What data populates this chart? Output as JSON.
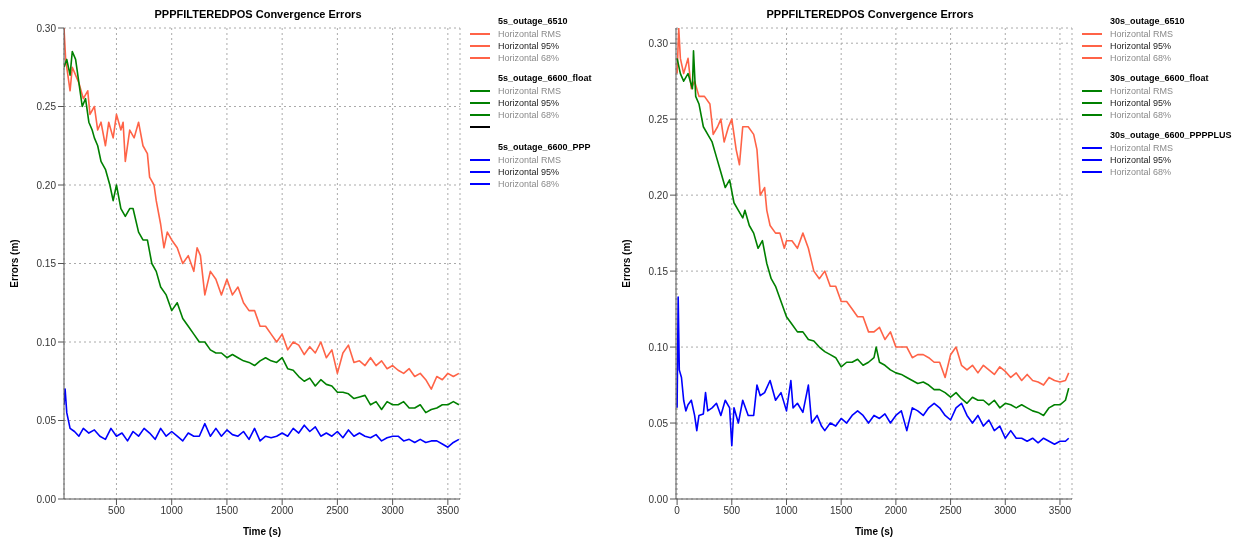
{
  "chart_data": [
    {
      "type": "line",
      "title": "PPPFILTEREDPOS Convergence Errors",
      "xlabel": "Time (s)",
      "ylabel": "Errors (m)",
      "xlim": [
        25,
        3610
      ],
      "xticks": [
        500,
        1000,
        1500,
        2000,
        2500,
        3000,
        3500
      ],
      "ylim": [
        0,
        0.3
      ],
      "yticks": [
        {
          "value": 0,
          "label": "0.00"
        },
        {
          "value": 0.05,
          "label": "0.05"
        },
        {
          "value": 0.1,
          "label": "0.10"
        },
        {
          "value": 0.15,
          "label": "0.15"
        },
        {
          "value": 0.2,
          "label": "0.20"
        },
        {
          "value": 0.25,
          "label": "0.25"
        },
        {
          "value": 0.3,
          "label": "0.30"
        }
      ],
      "grid": true,
      "legend": "right",
      "marker": "none",
      "line_style": "solid",
      "series": [
        {
          "name": "5s_outage_6510"
        },
        {
          "name": "Horizontal RMS",
          "color": "#ff6347"
        },
        {
          "name": "Horizontal 95%",
          "color": "#ff6347",
          "x": [
            25,
            40,
            60,
            80,
            100,
            130,
            160,
            200,
            240,
            260,
            300,
            330,
            360,
            400,
            430,
            470,
            500,
            540,
            560,
            580,
            620,
            660,
            700,
            740,
            780,
            800,
            840,
            860,
            900,
            930,
            960,
            1000,
            1050,
            1100,
            1150,
            1200,
            1230,
            1260,
            1300,
            1350,
            1400,
            1450,
            1500,
            1550,
            1600,
            1650,
            1700,
            1750,
            1800,
            1850,
            1900,
            1950,
            2000,
            2050,
            2100,
            2150,
            2200,
            2250,
            2300,
            2350,
            2400,
            2450,
            2500,
            2550,
            2600,
            2650,
            2700,
            2750,
            2800,
            2850,
            2900,
            2950,
            3000,
            3050,
            3100,
            3150,
            3200,
            3250,
            3300,
            3350,
            3400,
            3450,
            3500,
            3550,
            3600
          ],
          "values": [
            0.3,
            0.28,
            0.27,
            0.26,
            0.275,
            0.27,
            0.265,
            0.255,
            0.26,
            0.245,
            0.25,
            0.235,
            0.24,
            0.225,
            0.24,
            0.23,
            0.245,
            0.235,
            0.24,
            0.215,
            0.235,
            0.23,
            0.24,
            0.225,
            0.22,
            0.205,
            0.2,
            0.19,
            0.175,
            0.16,
            0.17,
            0.165,
            0.16,
            0.15,
            0.155,
            0.145,
            0.16,
            0.155,
            0.13,
            0.145,
            0.14,
            0.13,
            0.14,
            0.13,
            0.135,
            0.125,
            0.12,
            0.12,
            0.11,
            0.11,
            0.105,
            0.1,
            0.105,
            0.095,
            0.1,
            0.098,
            0.092,
            0.097,
            0.093,
            0.1,
            0.09,
            0.095,
            0.08,
            0.093,
            0.098,
            0.087,
            0.088,
            0.085,
            0.09,
            0.085,
            0.088,
            0.083,
            0.085,
            0.082,
            0.08,
            0.083,
            0.078,
            0.08,
            0.076,
            0.07,
            0.078,
            0.076,
            0.08,
            0.078,
            0.08
          ]
        },
        {
          "name": "Horizontal 68%",
          "color": "#ff6347"
        },
        {
          "name": "5s_outage_6600_float"
        },
        {
          "name": "Horizontal RMS",
          "color": "#008000"
        },
        {
          "name": "Horizontal 95%",
          "color": "#008000",
          "x": [
            25,
            50,
            80,
            100,
            130,
            160,
            190,
            220,
            250,
            280,
            300,
            330,
            360,
            400,
            440,
            470,
            500,
            540,
            580,
            620,
            650,
            700,
            740,
            780,
            820,
            860,
            900,
            950,
            1000,
            1050,
            1100,
            1150,
            1200,
            1250,
            1300,
            1350,
            1400,
            1450,
            1500,
            1550,
            1600,
            1650,
            1700,
            1750,
            1800,
            1850,
            1900,
            1950,
            2000,
            2050,
            2100,
            2150,
            2200,
            2250,
            2300,
            2350,
            2400,
            2450,
            2500,
            2550,
            2600,
            2650,
            2700,
            2750,
            2800,
            2850,
            2900,
            2950,
            3000,
            3050,
            3100,
            3150,
            3200,
            3250,
            3300,
            3350,
            3400,
            3450,
            3500,
            3550,
            3600
          ],
          "values": [
            0.275,
            0.28,
            0.27,
            0.285,
            0.28,
            0.265,
            0.25,
            0.255,
            0.24,
            0.235,
            0.23,
            0.225,
            0.215,
            0.21,
            0.2,
            0.19,
            0.2,
            0.185,
            0.18,
            0.185,
            0.185,
            0.17,
            0.165,
            0.165,
            0.15,
            0.145,
            0.135,
            0.13,
            0.12,
            0.125,
            0.115,
            0.11,
            0.105,
            0.1,
            0.1,
            0.095,
            0.093,
            0.093,
            0.09,
            0.092,
            0.09,
            0.088,
            0.087,
            0.085,
            0.088,
            0.09,
            0.088,
            0.087,
            0.09,
            0.083,
            0.082,
            0.078,
            0.075,
            0.077,
            0.072,
            0.076,
            0.073,
            0.072,
            0.068,
            0.068,
            0.067,
            0.064,
            0.065,
            0.066,
            0.06,
            0.062,
            0.057,
            0.062,
            0.06,
            0.06,
            0.062,
            0.058,
            0.058,
            0.06,
            0.055,
            0.057,
            0.058,
            0.06,
            0.06,
            0.062,
            0.06
          ]
        },
        {
          "name": "Horizontal 68%",
          "color": "#008000"
        },
        {
          "color": "#000000"
        },
        {
          "name": "5s_outage_6600_PPP"
        },
        {
          "name": "Horizontal RMS",
          "color": "#0000ff"
        },
        {
          "name": "Horizontal 95%",
          "color": "#0000ff",
          "x": [
            25,
            35,
            50,
            80,
            120,
            160,
            200,
            250,
            300,
            350,
            400,
            450,
            500,
            550,
            600,
            650,
            700,
            750,
            800,
            850,
            900,
            950,
            1000,
            1050,
            1100,
            1150,
            1200,
            1250,
            1300,
            1350,
            1400,
            1450,
            1500,
            1550,
            1600,
            1650,
            1700,
            1750,
            1800,
            1850,
            1900,
            1950,
            2000,
            2050,
            2100,
            2150,
            2200,
            2250,
            2300,
            2350,
            2400,
            2450,
            2500,
            2550,
            2600,
            2650,
            2700,
            2750,
            2800,
            2850,
            2900,
            2950,
            3000,
            3050,
            3100,
            3150,
            3200,
            3250,
            3300,
            3350,
            3400,
            3450,
            3500,
            3550,
            3600
          ],
          "values": [
            0.06,
            0.07,
            0.055,
            0.045,
            0.043,
            0.04,
            0.045,
            0.042,
            0.044,
            0.04,
            0.038,
            0.045,
            0.04,
            0.042,
            0.037,
            0.043,
            0.04,
            0.045,
            0.042,
            0.038,
            0.045,
            0.04,
            0.043,
            0.04,
            0.037,
            0.042,
            0.04,
            0.04,
            0.048,
            0.04,
            0.045,
            0.04,
            0.044,
            0.041,
            0.04,
            0.043,
            0.038,
            0.045,
            0.037,
            0.04,
            0.039,
            0.04,
            0.042,
            0.04,
            0.045,
            0.042,
            0.047,
            0.043,
            0.046,
            0.04,
            0.042,
            0.04,
            0.043,
            0.039,
            0.044,
            0.04,
            0.042,
            0.04,
            0.039,
            0.041,
            0.037,
            0.039,
            0.04,
            0.04,
            0.037,
            0.038,
            0.036,
            0.038,
            0.036,
            0.037,
            0.037,
            0.035,
            0.033,
            0.036,
            0.038
          ]
        },
        {
          "name": "Horizontal 68%",
          "color": "#0000ff"
        }
      ]
    },
    {
      "type": "line",
      "title": "PPPFILTEREDPOS Convergence Errors",
      "xlabel": "Time (s)",
      "ylabel": "Errors (m)",
      "xlim": [
        -10,
        3610
      ],
      "xticks": [
        0,
        500,
        1000,
        1500,
        2000,
        2500,
        3000,
        3500
      ],
      "ylim": [
        0,
        0.31
      ],
      "yticks": [
        {
          "value": 0,
          "label": "0.00"
        },
        {
          "value": 0.05,
          "label": "0.05"
        },
        {
          "value": 0.1,
          "label": "0.10"
        },
        {
          "value": 0.15,
          "label": "0.15"
        },
        {
          "value": 0.2,
          "label": "0.20"
        },
        {
          "value": 0.25,
          "label": "0.25"
        },
        {
          "value": 0.3,
          "label": "0.30"
        }
      ],
      "grid": true,
      "legend": "right",
      "marker": "none",
      "line_style": "solid",
      "series": [
        {
          "name": "30s_outage_6510"
        },
        {
          "name": "Horizontal RMS",
          "color": "#ff6347"
        },
        {
          "name": "Horizontal 95%",
          "color": "#ff6347",
          "x": [
            0,
            15,
            30,
            60,
            100,
            130,
            160,
            200,
            250,
            300,
            330,
            370,
            400,
            430,
            470,
            500,
            540,
            570,
            600,
            650,
            700,
            730,
            760,
            800,
            820,
            850,
            900,
            940,
            980,
            1000,
            1050,
            1100,
            1150,
            1200,
            1250,
            1300,
            1350,
            1400,
            1450,
            1500,
            1550,
            1600,
            1650,
            1700,
            1750,
            1800,
            1850,
            1900,
            1950,
            2000,
            2050,
            2100,
            2150,
            2200,
            2250,
            2300,
            2350,
            2400,
            2450,
            2500,
            2550,
            2600,
            2650,
            2700,
            2750,
            2800,
            2850,
            2900,
            2950,
            3000,
            3050,
            3100,
            3150,
            3200,
            3250,
            3300,
            3350,
            3400,
            3450,
            3500,
            3550,
            3580
          ],
          "values": [
            0.28,
            0.31,
            0.29,
            0.28,
            0.29,
            0.27,
            0.275,
            0.265,
            0.265,
            0.26,
            0.24,
            0.245,
            0.25,
            0.235,
            0.245,
            0.25,
            0.23,
            0.22,
            0.245,
            0.245,
            0.24,
            0.23,
            0.2,
            0.205,
            0.19,
            0.18,
            0.175,
            0.175,
            0.165,
            0.17,
            0.17,
            0.165,
            0.175,
            0.165,
            0.15,
            0.145,
            0.15,
            0.14,
            0.14,
            0.13,
            0.13,
            0.125,
            0.12,
            0.12,
            0.11,
            0.11,
            0.113,
            0.105,
            0.11,
            0.1,
            0.1,
            0.1,
            0.093,
            0.095,
            0.095,
            0.093,
            0.09,
            0.09,
            0.08,
            0.095,
            0.1,
            0.088,
            0.085,
            0.088,
            0.083,
            0.088,
            0.085,
            0.082,
            0.087,
            0.084,
            0.08,
            0.083,
            0.078,
            0.082,
            0.078,
            0.077,
            0.075,
            0.08,
            0.078,
            0.077,
            0.078,
            0.083
          ]
        },
        {
          "name": "Horizontal 68%",
          "color": "#ff6347"
        },
        {
          "name": "30s_outage_6600_float"
        },
        {
          "name": "Horizontal RMS",
          "color": "#008000"
        },
        {
          "name": "Horizontal 95%",
          "color": "#008000",
          "x": [
            0,
            30,
            60,
            100,
            140,
            150,
            170,
            200,
            240,
            280,
            320,
            360,
            400,
            440,
            480,
            520,
            560,
            600,
            620,
            660,
            700,
            740,
            780,
            820,
            860,
            900,
            950,
            1000,
            1050,
            1100,
            1150,
            1200,
            1250,
            1300,
            1350,
            1400,
            1450,
            1500,
            1550,
            1600,
            1650,
            1700,
            1750,
            1800,
            1820,
            1850,
            1900,
            1950,
            2000,
            2050,
            2100,
            2150,
            2200,
            2250,
            2300,
            2350,
            2400,
            2450,
            2500,
            2550,
            2600,
            2650,
            2700,
            2750,
            2800,
            2850,
            2900,
            2950,
            3000,
            3050,
            3100,
            3150,
            3200,
            3250,
            3300,
            3350,
            3400,
            3450,
            3500,
            3550,
            3580
          ],
          "values": [
            0.29,
            0.28,
            0.275,
            0.28,
            0.27,
            0.295,
            0.265,
            0.26,
            0.245,
            0.24,
            0.235,
            0.225,
            0.215,
            0.205,
            0.21,
            0.195,
            0.19,
            0.185,
            0.19,
            0.18,
            0.175,
            0.165,
            0.17,
            0.155,
            0.145,
            0.14,
            0.13,
            0.12,
            0.115,
            0.11,
            0.11,
            0.105,
            0.104,
            0.1,
            0.097,
            0.095,
            0.093,
            0.087,
            0.09,
            0.09,
            0.092,
            0.088,
            0.09,
            0.093,
            0.1,
            0.09,
            0.088,
            0.085,
            0.083,
            0.082,
            0.08,
            0.078,
            0.076,
            0.077,
            0.075,
            0.072,
            0.072,
            0.07,
            0.067,
            0.07,
            0.066,
            0.063,
            0.067,
            0.065,
            0.065,
            0.062,
            0.065,
            0.06,
            0.063,
            0.062,
            0.06,
            0.062,
            0.06,
            0.058,
            0.057,
            0.055,
            0.06,
            0.062,
            0.062,
            0.065,
            0.073
          ]
        },
        {
          "name": "Horizontal 68%",
          "color": "#008000"
        },
        {
          "name": "30s_outage_6600_PPPPLUS"
        },
        {
          "name": "Horizontal RMS",
          "color": "#0000ff"
        },
        {
          "name": "Horizontal 95%",
          "color": "#0000ff",
          "x": [
            0,
            10,
            20,
            40,
            60,
            80,
            100,
            130,
            160,
            180,
            200,
            240,
            260,
            280,
            320,
            360,
            400,
            440,
            480,
            500,
            520,
            560,
            600,
            650,
            700,
            730,
            760,
            800,
            850,
            900,
            950,
            1000,
            1040,
            1060,
            1100,
            1150,
            1200,
            1230,
            1280,
            1320,
            1350,
            1400,
            1450,
            1500,
            1550,
            1600,
            1650,
            1700,
            1750,
            1800,
            1850,
            1900,
            1950,
            2000,
            2050,
            2100,
            2150,
            2200,
            2250,
            2300,
            2350,
            2400,
            2450,
            2500,
            2550,
            2600,
            2650,
            2700,
            2750,
            2800,
            2850,
            2900,
            2950,
            3000,
            3050,
            3100,
            3150,
            3200,
            3250,
            3300,
            3350,
            3400,
            3450,
            3500,
            3550,
            3580
          ],
          "values": [
            0.06,
            0.133,
            0.085,
            0.08,
            0.065,
            0.058,
            0.062,
            0.065,
            0.055,
            0.045,
            0.055,
            0.056,
            0.07,
            0.058,
            0.06,
            0.063,
            0.055,
            0.065,
            0.06,
            0.035,
            0.06,
            0.05,
            0.065,
            0.055,
            0.055,
            0.075,
            0.068,
            0.07,
            0.078,
            0.065,
            0.07,
            0.058,
            0.078,
            0.06,
            0.063,
            0.057,
            0.075,
            0.05,
            0.055,
            0.048,
            0.045,
            0.05,
            0.048,
            0.053,
            0.05,
            0.055,
            0.058,
            0.055,
            0.05,
            0.055,
            0.053,
            0.056,
            0.05,
            0.055,
            0.058,
            0.045,
            0.06,
            0.058,
            0.055,
            0.06,
            0.063,
            0.06,
            0.055,
            0.052,
            0.06,
            0.063,
            0.055,
            0.05,
            0.055,
            0.048,
            0.052,
            0.045,
            0.048,
            0.04,
            0.045,
            0.04,
            0.04,
            0.038,
            0.04,
            0.037,
            0.04,
            0.038,
            0.036,
            0.038,
            0.038,
            0.04
          ]
        },
        {
          "name": "Horizontal 68%",
          "color": "#0000ff"
        }
      ]
    }
  ]
}
